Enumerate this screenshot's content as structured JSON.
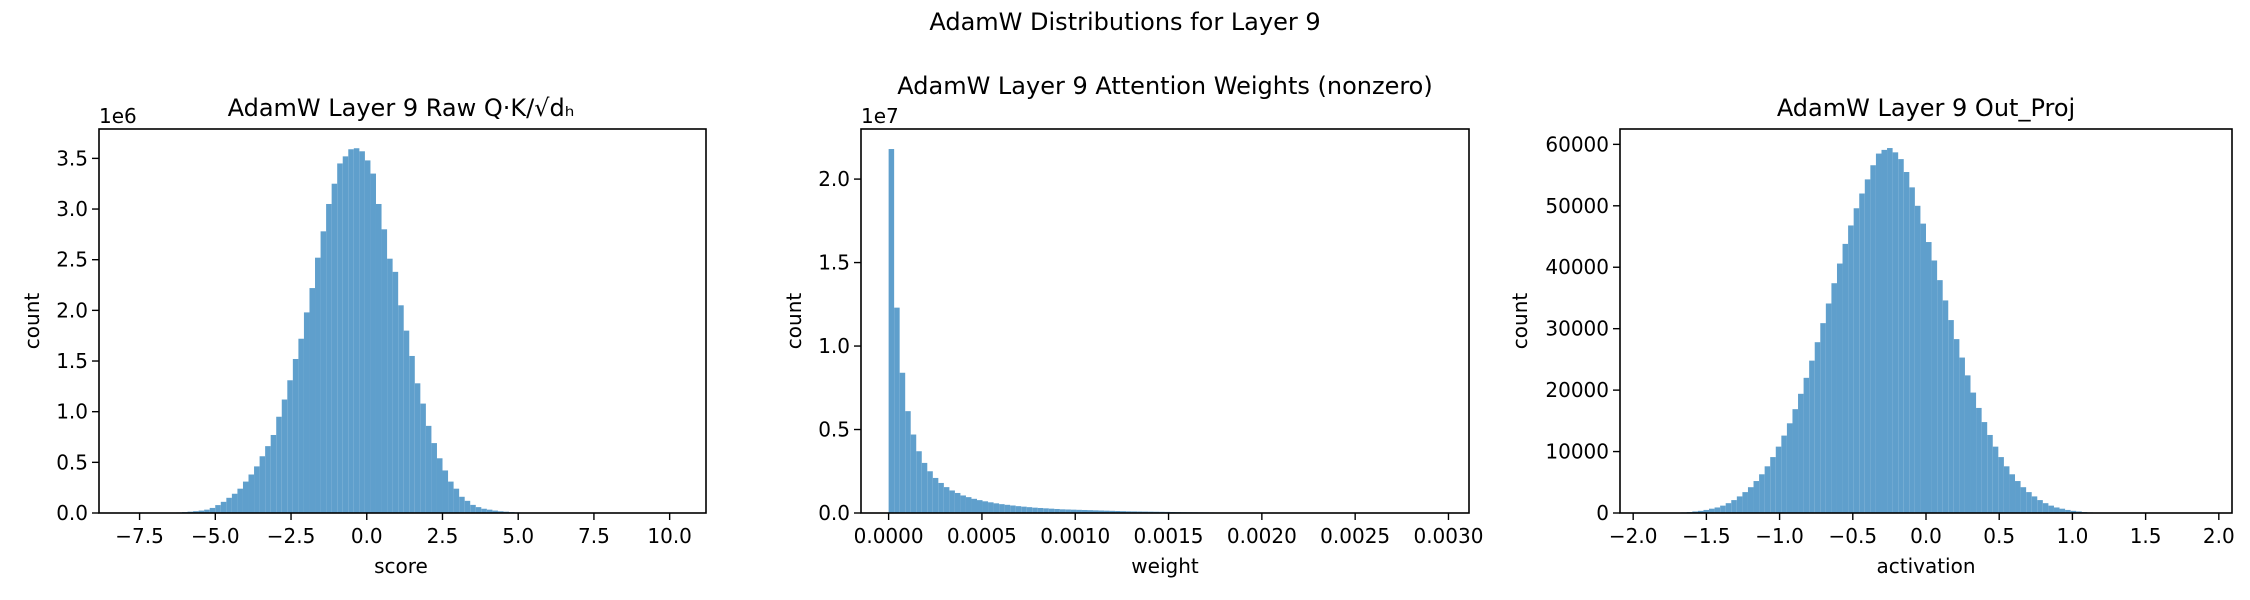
{
  "figure": {
    "title": "AdamW Distributions for Layer 9",
    "bar_color": "#5f9fcc"
  },
  "chart_data": [
    {
      "type": "bar",
      "title": "AdamW Layer 9 Raw Q·K/√dₕ",
      "xlabel": "score",
      "ylabel": "count",
      "offset_text": "1e6",
      "xlim": [
        -8.84,
        11.2
      ],
      "ylim": [
        0,
        3.79
      ],
      "xticks": [
        -7.5,
        -5.0,
        -2.5,
        0.0,
        2.5,
        5.0,
        7.5,
        10.0
      ],
      "xtick_labels": [
        "−7.5",
        "−5.0",
        "−2.5",
        "0.0",
        "2.5",
        "5.0",
        "7.5",
        "10.0"
      ],
      "yticks": [
        0.0,
        0.5,
        1.0,
        1.5,
        2.0,
        2.5,
        3.0,
        3.5
      ],
      "ytick_labels": [
        "0.0",
        "0.5",
        "1.0",
        "1.5",
        "2.0",
        "2.5",
        "3.0",
        "3.5"
      ],
      "y_unit": "×1e6",
      "bins": {
        "start": -7.93,
        "width": 0.183,
        "values": [
          0.0005,
          0.0005,
          0.0007,
          0.001,
          0.0014,
          0.0016,
          0.002,
          0.0026,
          0.0039,
          0.0056,
          0.0088,
          0.013,
          0.018,
          0.024,
          0.033,
          0.05,
          0.078,
          0.11,
          0.15,
          0.19,
          0.24,
          0.31,
          0.38,
          0.46,
          0.56,
          0.66,
          0.77,
          0.95,
          1.12,
          1.31,
          1.52,
          1.72,
          1.98,
          2.22,
          2.52,
          2.78,
          3.05,
          3.25,
          3.45,
          3.52,
          3.59,
          3.6,
          3.57,
          3.48,
          3.35,
          3.05,
          2.8,
          2.51,
          2.38,
          2.05,
          1.8,
          1.55,
          1.28,
          1.08,
          0.86,
          0.69,
          0.54,
          0.42,
          0.31,
          0.24,
          0.16,
          0.12,
          0.08,
          0.058,
          0.042,
          0.033,
          0.024,
          0.017,
          0.013,
          0.009,
          0.006,
          0.0045,
          0.003,
          0.002,
          0.0015,
          0.0011,
          0.0008,
          0.0006,
          0.0004,
          0.0003,
          0.0003,
          0.0002,
          0.0002,
          0.0001,
          0.0001,
          0.0001,
          0.0001,
          0.0001,
          0.0001,
          0.0001,
          0.0001,
          0.0001,
          0.0001,
          0.0001,
          0.0001,
          0.0001,
          0.0001,
          0.0001,
          0.0001,
          0.0001
        ]
      }
    },
    {
      "type": "bar",
      "title": "AdamW Layer 9 Attention Weights (nonzero)",
      "xlabel": "weight",
      "ylabel": "count",
      "offset_text": "1e7",
      "xlim": [
        -0.000148,
        0.00311
      ],
      "ylim": [
        0,
        2.3
      ],
      "xticks": [
        0.0,
        0.0005,
        0.001,
        0.0015,
        0.002,
        0.0025,
        0.003
      ],
      "xtick_labels": [
        "0.0000",
        "0.0005",
        "0.0010",
        "0.0015",
        "0.0020",
        "0.0025",
        "0.0030"
      ],
      "yticks": [
        0.0,
        0.5,
        1.0,
        1.5,
        2.0
      ],
      "ytick_labels": [
        "0.0",
        "0.5",
        "1.0",
        "1.5",
        "2.0"
      ],
      "y_unit": "×1e7",
      "bins": {
        "start": 0.0,
        "width": 2.96e-05,
        "values": [
          2.18,
          1.23,
          0.84,
          0.61,
          0.47,
          0.37,
          0.3,
          0.25,
          0.21,
          0.18,
          0.155,
          0.135,
          0.12,
          0.105,
          0.095,
          0.085,
          0.077,
          0.07,
          0.064,
          0.058,
          0.053,
          0.049,
          0.045,
          0.041,
          0.038,
          0.035,
          0.032,
          0.03,
          0.028,
          0.026,
          0.024,
          0.022,
          0.021,
          0.02,
          0.019,
          0.018,
          0.017,
          0.016,
          0.015,
          0.014,
          0.013,
          0.012,
          0.011,
          0.01,
          0.0095,
          0.009,
          0.0085,
          0.008,
          0.0075,
          0.007,
          0.0065,
          0.006,
          0.0055,
          0.005,
          0.0047,
          0.0044,
          0.0041,
          0.0038,
          0.0035,
          0.0032
        ]
      }
    },
    {
      "type": "bar",
      "title": "AdamW Layer 9 Out_Proj",
      "xlabel": "activation",
      "ylabel": "count",
      "offset_text": "",
      "xlim": [
        -2.09,
        2.09
      ],
      "ylim": [
        0,
        62500
      ],
      "xticks": [
        -2.0,
        -1.5,
        -1.0,
        -0.5,
        0.0,
        0.5,
        1.0,
        1.5,
        2.0
      ],
      "xtick_labels": [
        "−2.0",
        "−1.5",
        "−1.0",
        "−0.5",
        "0.0",
        "0.5",
        "1.0",
        "1.5",
        "2.0"
      ],
      "yticks": [
        0,
        10000,
        20000,
        30000,
        40000,
        50000,
        60000
      ],
      "ytick_labels": [
        "0",
        "10000",
        "20000",
        "30000",
        "40000",
        "50000",
        "60000"
      ],
      "y_unit": "",
      "bins": {
        "start": -1.9,
        "width": 0.038,
        "values": [
          10,
          10,
          20,
          30,
          50,
          80,
          100,
          150,
          250,
          350,
          500,
          700,
          900,
          1200,
          1600,
          2100,
          2700,
          3400,
          4200,
          5200,
          6300,
          7600,
          9100,
          10800,
          12600,
          14600,
          16900,
          19400,
          22000,
          24800,
          27800,
          30900,
          34100,
          37400,
          40600,
          43800,
          46800,
          49600,
          52000,
          54300,
          56600,
          58500,
          59100,
          59400,
          58700,
          57600,
          55500,
          53000,
          50000,
          47100,
          44100,
          41100,
          37900,
          34600,
          31400,
          28300,
          25300,
          22400,
          19600,
          17100,
          14800,
          12700,
          10800,
          9100,
          7600,
          6300,
          5200,
          4200,
          3400,
          2700,
          2100,
          1600,
          1200,
          900,
          700,
          500,
          350,
          250,
          150,
          100,
          80,
          50,
          30,
          20,
          10,
          10,
          5,
          5,
          5,
          5
        ]
      }
    }
  ]
}
